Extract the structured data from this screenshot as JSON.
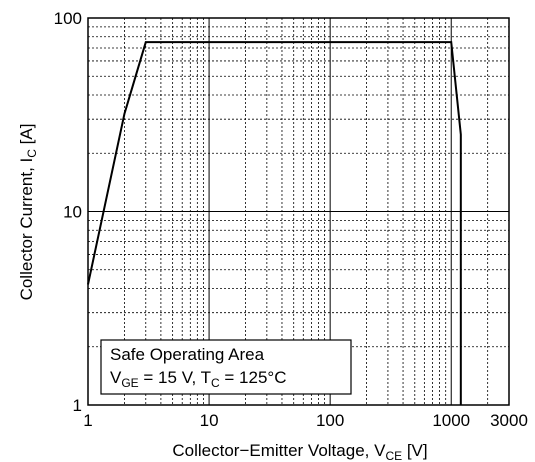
{
  "chart_data": {
    "type": "line",
    "title": "",
    "x_scale": "log",
    "y_scale": "log",
    "xlim": [
      1,
      3000
    ],
    "ylim": [
      1,
      100
    ],
    "grid": true,
    "xticks": [
      {
        "value": 1,
        "label": "1"
      },
      {
        "value": 10,
        "label": "10"
      },
      {
        "value": 100,
        "label": "100"
      },
      {
        "value": 1000,
        "label": "1000"
      },
      {
        "value": 3000,
        "label": "3000"
      }
    ],
    "yticks": [
      {
        "value": 1,
        "label": "1"
      },
      {
        "value": 10,
        "label": "10"
      },
      {
        "value": 100,
        "label": "100"
      }
    ],
    "xlabel": {
      "main": "Collector−Emitter Voltage, V",
      "sub": "CE",
      "unit": " [V]"
    },
    "ylabel": {
      "main": "Collector Current, I",
      "sub": "C",
      "unit": " [A]"
    },
    "legend": {
      "placement": "bottom-left",
      "line1": "Safe Operating Area",
      "line2_a": "V",
      "line2_a_sub": "GE",
      "line2_b": " = 15 V, T",
      "line2_b_sub": "C",
      "line2_c": " = 125°C"
    },
    "series": [
      {
        "color": "#000000",
        "points": [
          [
            1,
            4.2
          ],
          [
            2,
            32
          ],
          [
            3,
            75
          ],
          [
            1000,
            75
          ],
          [
            1200,
            25
          ],
          [
            1200,
            1
          ]
        ]
      }
    ]
  }
}
